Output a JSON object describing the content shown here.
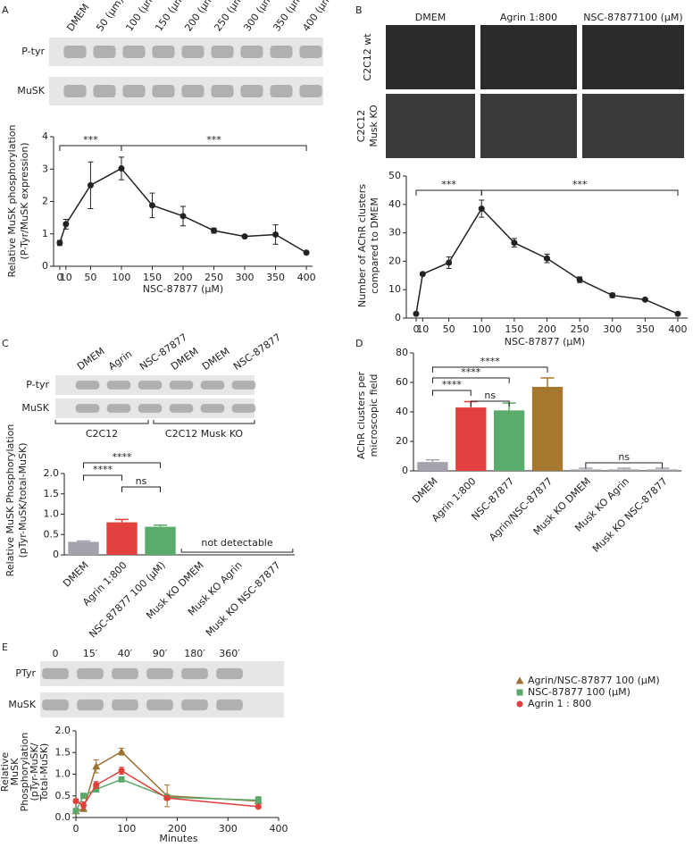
{
  "chart_data": [
    {
      "type": "line",
      "panel": "A",
      "blot": {
        "lanes": [
          "DMEM",
          "50 (μm)",
          "100 (μm)",
          "150 (μm)",
          "200 (μm)",
          "250 (μm)",
          "300 (μm)",
          "350 (μm)",
          "400 (μm)"
        ],
        "rows": [
          "P-tyr",
          "MuSK"
        ]
      },
      "ylabel": [
        "Relative MuSK phosphorylation",
        "(P-Tyr/MuSK expression)"
      ],
      "xlabel": "NSC-87877 (μM)",
      "x": [
        0,
        10,
        50,
        100,
        150,
        200,
        250,
        300,
        350,
        400
      ],
      "values": [
        0.72,
        1.3,
        2.5,
        3.02,
        1.88,
        1.55,
        1.1,
        0.92,
        0.98,
        0.42
      ],
      "errors": [
        0.08,
        0.15,
        0.72,
        0.35,
        0.38,
        0.3,
        0.08,
        0.03,
        0.3,
        0.03
      ],
      "color": "#222222",
      "marker": "circle",
      "xlim": [
        -10,
        410
      ],
      "xticks": [
        0,
        10,
        50,
        100,
        150,
        200,
        250,
        300,
        350,
        400
      ],
      "ylim": [
        0,
        4
      ],
      "yticks": [
        0,
        1,
        2,
        3,
        4
      ],
      "brackets": [
        {
          "text": "***",
          "from": 0,
          "to": 100
        },
        {
          "text": "***",
          "from": 100,
          "to": 400
        }
      ]
    },
    {
      "type": "line",
      "panel": "B",
      "images": {
        "columns": [
          "DMEM",
          "Agrin 1:800",
          "NSC-87877100 (μM)"
        ],
        "rows": [
          [
            "C2C12 wt"
          ],
          [
            "C2C12",
            "Musk KO"
          ]
        ]
      },
      "ylabel": [
        "Number of AChR clusters",
        "compared to DMEM"
      ],
      "xlabel": "NSC-87877 (μM)",
      "x": [
        0,
        10,
        50,
        100,
        150,
        200,
        250,
        300,
        350,
        400
      ],
      "values": [
        1.5,
        15.5,
        19.5,
        38.5,
        26.5,
        21,
        13.5,
        8,
        6.5,
        1.5
      ],
      "errors": [
        0.3,
        0.5,
        2,
        3,
        1.5,
        1.5,
        1,
        0.8,
        0.5,
        0.3
      ],
      "color": "#222222",
      "marker": "circle",
      "xlim": [
        -15,
        415
      ],
      "xticks": [
        0,
        10,
        50,
        100,
        150,
        200,
        250,
        300,
        350,
        400
      ],
      "ylim": [
        0,
        50
      ],
      "yticks": [
        0,
        10,
        20,
        30,
        40,
        50
      ],
      "brackets": [
        {
          "text": "***",
          "from": 0,
          "to": 100
        },
        {
          "text": "***",
          "from": 100,
          "to": 400
        }
      ]
    },
    {
      "type": "bar",
      "panel": "C",
      "blot": {
        "lanes": [
          "DMEM",
          "Agrin",
          "NSC-87877",
          "DMEM",
          "DMEM",
          "NSC-87877"
        ],
        "rows": [
          "P-tyr",
          "MuSK"
        ],
        "groups": [
          "C2C12",
          "C2C12 Musk KO"
        ]
      },
      "ylabel": [
        "Relative MuSK Phosphorylation",
        "(pTyr-MuSK/total-MuSK)"
      ],
      "categories": [
        "DMEM",
        "Agrin 1:800",
        "NSC-87877 100 (μM)",
        "Musk KO DMEM",
        "Musk KO Agrin",
        "Musk KO NSC-87877"
      ],
      "values": [
        0.32,
        0.8,
        0.69,
        null,
        null,
        null
      ],
      "errors": [
        0.02,
        0.07,
        0.04,
        null,
        null,
        null
      ],
      "colors": [
        "#a3a3ab",
        "#e2413f",
        "#5bab6b"
      ],
      "ylim": [
        0,
        2
      ],
      "yticks": [
        0,
        0.5,
        {
          "value": 1,
          "label": "1.0"
        },
        1.5,
        {
          "value": 2,
          "label": "2.0"
        }
      ],
      "brackets": [
        {
          "text": "****",
          "from": "DMEM",
          "to": "NSC-87877 100 (μM)"
        },
        {
          "text": "****",
          "from": "DMEM",
          "to": "Agrin 1:800"
        },
        {
          "text": "ns",
          "from": "Agrin 1:800",
          "to": "NSC-87877 100 (μM)"
        }
      ],
      "note": {
        "text": "not detectable",
        "from": "Musk KO DMEM",
        "to": "Musk KO NSC-87877"
      }
    },
    {
      "type": "bar",
      "panel": "D",
      "ylabel": [
        "AChR clusters per",
        "microscopic field"
      ],
      "categories": [
        "DMEM",
        "Agrin 1:800",
        "NSC-87877",
        "Agrin/NSC-87877",
        "Musk KO DMEM",
        "Musk KO Agrin",
        "Musk KO NSC-87877"
      ],
      "values": [
        6,
        43,
        41,
        57,
        1,
        1,
        1
      ],
      "errors": [
        1.5,
        4,
        5,
        6,
        0.8,
        0.8,
        0.8
      ],
      "colors": [
        "#a3a3ab",
        "#e2413f",
        "#5bab6b",
        "#a5772f",
        "#a3a3ab",
        "#a3a3ab",
        "#a3a3ab"
      ],
      "ylim": [
        0,
        80
      ],
      "yticks": [
        0,
        20,
        40,
        60,
        80
      ],
      "brackets": [
        {
          "text": "****",
          "from": "DMEM",
          "to": "Agrin/NSC-87877"
        },
        {
          "text": "****",
          "from": "DMEM",
          "to": "NSC-87877"
        },
        {
          "text": "****",
          "from": "DMEM",
          "to": "Agrin 1:800"
        },
        {
          "text": "ns",
          "from": "Agrin 1:800",
          "to": "NSC-87877"
        },
        {
          "text": "ns",
          "from": "Musk KO DMEM",
          "to": "Musk KO NSC-87877"
        }
      ]
    },
    {
      "type": "line",
      "panel": "E",
      "blot": {
        "lanes": [
          "0",
          "15′",
          "40′",
          "90′",
          "180′",
          "360′"
        ],
        "rows": [
          "PTyr",
          "MuSK"
        ]
      },
      "ylabel": [
        "Relative",
        "MuSK",
        "Phosphorylation",
        "(pTyr-MuSK/",
        "Total-MuSK)"
      ],
      "xlabel": "Minutes",
      "x": [
        0,
        15,
        40,
        90,
        180,
        360
      ],
      "series": [
        {
          "name": "Agrin/NSC-87877 100 (μM)",
          "color": "#9b7130",
          "marker": "triangle",
          "values": [
            0.15,
            0.2,
            1.18,
            1.52,
            0.5,
            0.38
          ],
          "errors": [
            0.05,
            0.05,
            0.15,
            0.08,
            0.25,
            0.1
          ]
        },
        {
          "name": "NSC-87877 100 (μM)",
          "color": "#5aa86a",
          "marker": "square",
          "values": [
            0.15,
            0.5,
            0.65,
            0.88,
            0.47,
            0.4
          ],
          "errors": [
            0.03,
            0.05,
            0.05,
            0.05,
            0.05,
            0.08
          ]
        },
        {
          "name": "Agrin 1 : 800",
          "color": "#e0403c",
          "marker": "circle",
          "values": [
            0.38,
            0.28,
            0.75,
            1.08,
            0.45,
            0.25
          ],
          "errors": [
            0.05,
            0.08,
            0.08,
            0.08,
            0.05,
            0.03
          ]
        }
      ],
      "xlim": [
        0,
        400
      ],
      "xticks": [
        0,
        100,
        200,
        300,
        400
      ],
      "ylim": [
        0,
        2
      ],
      "yticks": [
        {
          "value": 0,
          "label": "0.0"
        },
        0.5,
        {
          "value": 1,
          "label": "1.0"
        },
        1.5,
        {
          "value": 2,
          "label": "2.0"
        }
      ],
      "legend": "right"
    }
  ]
}
